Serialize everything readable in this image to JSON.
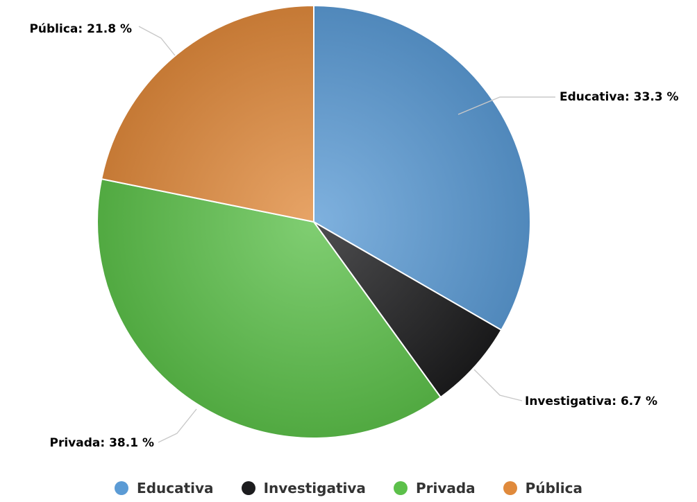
{
  "chart_data": {
    "type": "pie",
    "categories": [
      "Educativa",
      "Investigativa",
      "Privada",
      "Pública"
    ],
    "values": [
      33.3,
      6.7,
      38.1,
      21.8
    ],
    "unit": "%",
    "colors": [
      "#5b9bd5",
      "#1c1c1e",
      "#5cc04a",
      "#e08a3c"
    ],
    "data_labels": [
      "Educativa: 33.3 %",
      "Investigativa: 6.7 %",
      "Privada: 38.1 %",
      "Pública: 21.8 %"
    ],
    "title": "",
    "legend_position": "bottom"
  },
  "legend": [
    {
      "label": "Educativa",
      "color": "#5b9bd5"
    },
    {
      "label": "Investigativa",
      "color": "#1c1c1e"
    },
    {
      "label": "Privada",
      "color": "#5cc04a"
    },
    {
      "label": "Pública",
      "color": "#e08a3c"
    }
  ]
}
